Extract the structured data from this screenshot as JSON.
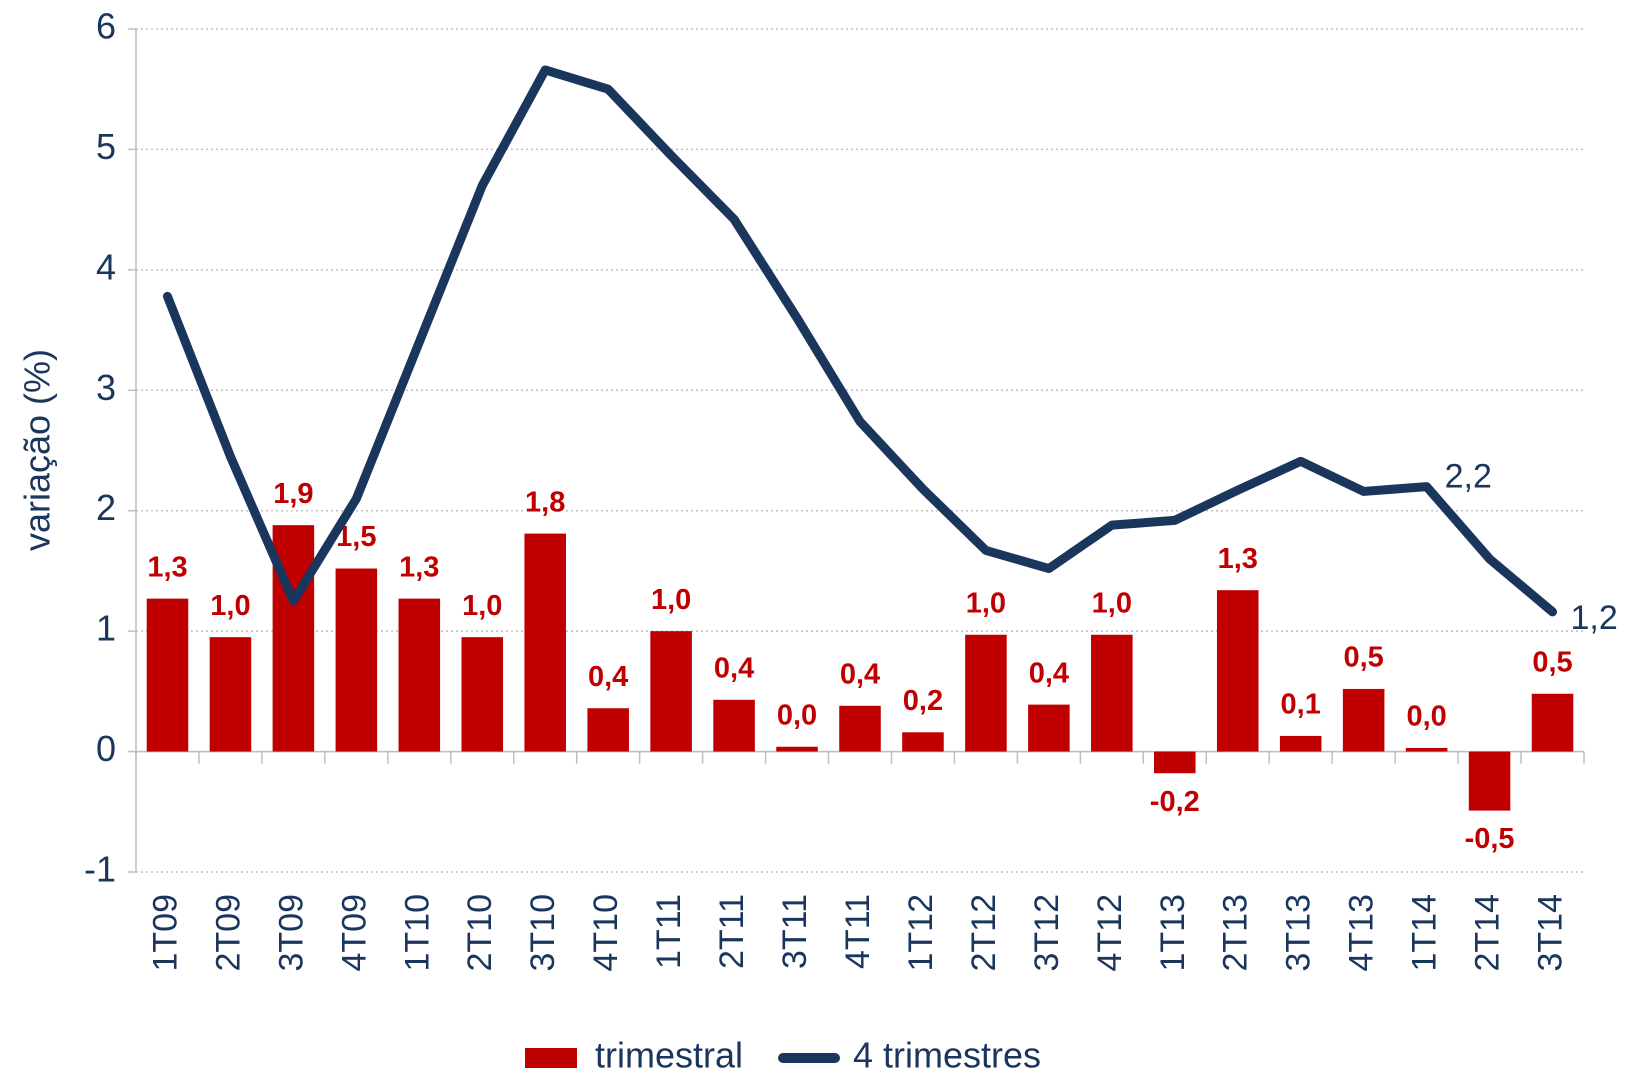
{
  "chart_data": {
    "type": "bar-line",
    "y_label": "variação (%)",
    "categories": [
      "1T09",
      "2T09",
      "3T09",
      "4T09",
      "1T10",
      "2T10",
      "3T10",
      "4T10",
      "1T11",
      "2T11",
      "3T11",
      "4T11",
      "1T12",
      "2T12",
      "3T12",
      "4T12",
      "1T13",
      "2T13",
      "3T13",
      "4T13",
      "1T14",
      "2T14",
      "3T14"
    ],
    "series": [
      {
        "name": "trimestral",
        "type": "bar",
        "color": "#c00000",
        "values": [
          1.27,
          0.95,
          1.88,
          1.52,
          1.27,
          0.95,
          1.81,
          0.36,
          1.0,
          0.43,
          0.04,
          0.38,
          0.16,
          0.97,
          0.39,
          0.97,
          -0.18,
          1.34,
          0.13,
          0.52,
          0.03,
          -0.49,
          0.48
        ],
        "value_labels": [
          "1,3",
          "1,0",
          "1,9",
          "1,5",
          "1,3",
          "1,0",
          "1,8",
          "0,4",
          "1,0",
          "0,4",
          "0,0",
          "0,4",
          "0,2",
          "1,0",
          "0,4",
          "1,0",
          "-0,2",
          "1,3",
          "0,1",
          "0,5",
          "0,0",
          "-0,5",
          "0,5"
        ]
      },
      {
        "name": "4 trimestres",
        "type": "line",
        "color": "#1b365d",
        "values": [
          3.78,
          2.45,
          1.25,
          2.1,
          3.4,
          4.7,
          5.66,
          5.5,
          4.95,
          4.42,
          3.6,
          2.74,
          2.18,
          1.67,
          1.52,
          1.88,
          1.92,
          2.17,
          2.41,
          2.16,
          2.2,
          1.6,
          1.16
        ],
        "value_labels": [
          null,
          null,
          null,
          null,
          null,
          null,
          null,
          null,
          null,
          null,
          null,
          null,
          null,
          null,
          null,
          null,
          null,
          null,
          null,
          null,
          "2,2",
          null,
          "1,2"
        ]
      }
    ],
    "ylim": [
      -1,
      6
    ],
    "yticks": [
      -1,
      0,
      1,
      2,
      3,
      4,
      5,
      6
    ],
    "grid": true,
    "legend": "bottom"
  }
}
